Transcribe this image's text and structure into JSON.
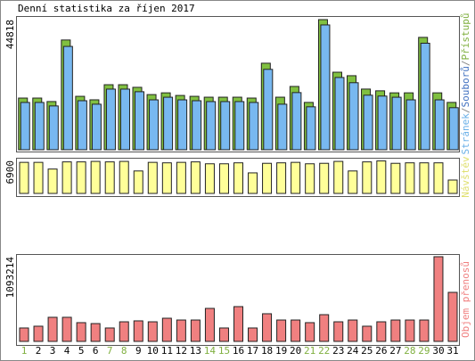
{
  "chart_data": [
    {
      "type": "bar",
      "title": "Denní statistika za říjen 2017",
      "ylim": [
        0,
        44818
      ],
      "yticks": [
        44818
      ],
      "legend": [
        {
          "text": "Stránek",
          "color": "#6ab0e8"
        },
        {
          "text": "Souborů",
          "color": "#4070c0"
        },
        {
          "text": "Přístupů",
          "color": "#80b040"
        }
      ],
      "legend_separator": "/",
      "series": [
        {
          "color": "#80c040",
          "values": [
            17800,
            17800,
            16600,
            37800,
            18400,
            17200,
            22400,
            22400,
            21500,
            19000,
            19600,
            18700,
            18400,
            18100,
            18100,
            18100,
            17800,
            29800,
            18100,
            21800,
            16300,
            44818,
            26700,
            25500,
            20900,
            20300,
            19600,
            19600,
            38700,
            19600,
            16300
          ]
        },
        {
          "color": "#78b8f0",
          "values": [
            16900,
            16900,
            15700,
            36200,
            17500,
            16300,
            21500,
            21500,
            20600,
            17800,
            18700,
            17800,
            17500,
            17200,
            17200,
            17200,
            16900,
            28300,
            16300,
            20300,
            15400,
            43600,
            25500,
            23700,
            19400,
            19100,
            18700,
            17800,
            37300,
            17800,
            15100
          ]
        }
      ]
    },
    {
      "type": "bar",
      "ylim": [
        0,
        6900
      ],
      "yticks": [
        6900
      ],
      "legend": [
        {
          "text": "Návštěv",
          "color": "#e0e070"
        }
      ],
      "series": [
        {
          "color": "#ffff99",
          "values": [
            6500,
            6500,
            5100,
            6600,
            6600,
            6700,
            6600,
            6700,
            4700,
            6500,
            6400,
            6500,
            6600,
            6200,
            6200,
            6400,
            4300,
            6300,
            6400,
            6500,
            6200,
            6300,
            6700,
            4700,
            6600,
            6800,
            6300,
            6400,
            6400,
            6400,
            2800
          ]
        }
      ]
    },
    {
      "type": "bar",
      "ylim": [
        0,
        1093214
      ],
      "yticks": [
        1093214
      ],
      "legend": [
        {
          "text": "Objem přenosů",
          "color": "#f08080"
        }
      ],
      "categories": [
        "1",
        "2",
        "3",
        "4",
        "5",
        "6",
        "7",
        "8",
        "9",
        "10",
        "11",
        "12",
        "13",
        "14",
        "15",
        "16",
        "17",
        "18",
        "19",
        "20",
        "21",
        "22",
        "23",
        "24",
        "25",
        "26",
        "27",
        "28",
        "29",
        "30",
        "31"
      ],
      "category_colors": [
        "#80b040",
        "#000",
        "#000",
        "#000",
        "#000",
        "#000",
        "#80b040",
        "#80b040",
        "#000",
        "#000",
        "#000",
        "#000",
        "#000",
        "#80b040",
        "#80b040",
        "#000",
        "#000",
        "#000",
        "#000",
        "#000",
        "#80b040",
        "#80b040",
        "#000",
        "#000",
        "#000",
        "#000",
        "#000",
        "#80b040",
        "#80b040",
        "#000",
        "#000"
      ],
      "series": [
        {
          "color": "#f08080",
          "values": [
            173000,
            196000,
            311000,
            311000,
            242000,
            230000,
            173000,
            253000,
            265000,
            253000,
            299000,
            276000,
            276000,
            426000,
            173000,
            449000,
            173000,
            357000,
            276000,
            276000,
            242000,
            345000,
            253000,
            276000,
            196000,
            253000,
            276000,
            276000,
            276000,
            1093214,
            633000
          ]
        }
      ]
    }
  ]
}
